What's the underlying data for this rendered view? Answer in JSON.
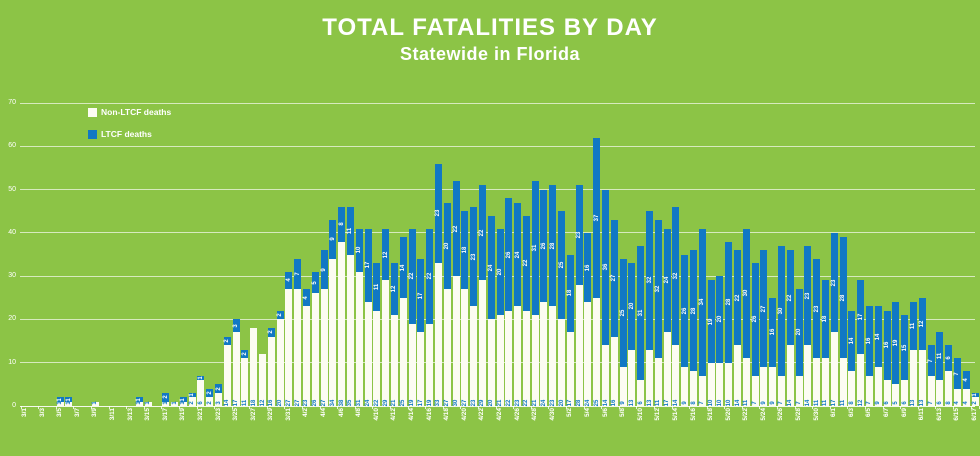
{
  "title": "TOTAL FATALITIES BY DAY",
  "subtitle": "Statewide in Florida",
  "colors": {
    "background": "#8CC446",
    "non_ltcf": "#FCFCF2",
    "ltcf": "#1178C4",
    "text": "#FFFFFF"
  },
  "legend": [
    {
      "label": "Non-LTCF deaths",
      "color": "#FCFCF2"
    },
    {
      "label": "LTCF deaths",
      "color": "#1178C4"
    }
  ],
  "chart_data": {
    "type": "bar",
    "stacked": true,
    "title": "TOTAL FATALITIES BY DAY",
    "subtitle": "Statewide in Florida",
    "xlabel": "",
    "ylabel": "",
    "ylim": [
      0,
      70
    ],
    "yticks": [
      0,
      10,
      20,
      30,
      40,
      50,
      60,
      70
    ],
    "grid": true,
    "legend_position": "top-left-inside",
    "xtick_every": 2,
    "x": [
      "3/1",
      "3/2",
      "3/3",
      "3/4",
      "3/5",
      "3/6",
      "3/7",
      "3/8",
      "3/9",
      "3/10",
      "3/11",
      "3/12",
      "3/13",
      "3/14",
      "3/15",
      "3/16",
      "3/17",
      "3/18",
      "3/19",
      "3/20",
      "3/21",
      "3/22",
      "3/23",
      "3/24",
      "3/25",
      "3/26",
      "3/27",
      "3/28",
      "3/29",
      "3/30",
      "3/31",
      "4/1",
      "4/2",
      "4/3",
      "4/4",
      "4/5",
      "4/6",
      "4/7",
      "4/8",
      "4/9",
      "4/10",
      "4/11",
      "4/12",
      "4/13",
      "4/14",
      "4/15",
      "4/16",
      "4/17",
      "4/18",
      "4/19",
      "4/20",
      "4/21",
      "4/22",
      "4/23",
      "4/24",
      "4/25",
      "4/26",
      "4/27",
      "4/28",
      "4/29",
      "4/30",
      "5/1",
      "5/2",
      "5/3",
      "5/4",
      "5/5",
      "5/6",
      "5/7",
      "5/8",
      "5/9",
      "5/10",
      "5/11",
      "5/12",
      "5/13",
      "5/14",
      "5/15",
      "5/16",
      "5/17",
      "5/18",
      "5/19",
      "5/20",
      "5/21",
      "5/22",
      "5/23",
      "5/24",
      "5/25",
      "5/26",
      "5/27",
      "5/28",
      "5/29",
      "5/30",
      "5/31",
      "6/1",
      "6/2",
      "6/3",
      "6/4",
      "6/5",
      "6/6",
      "6/7",
      "6/8",
      "6/9",
      "6/10",
      "6/11",
      "6/12",
      "6/13",
      "6/14",
      "6/15",
      "6/16",
      "6/17"
    ],
    "series": [
      {
        "name": "Non-LTCF deaths",
        "values": [
          0,
          0,
          0,
          0,
          1,
          1,
          0,
          0,
          1,
          0,
          0,
          0,
          0,
          1,
          1,
          0,
          1,
          1,
          1,
          2,
          6,
          2,
          3,
          14,
          17,
          11,
          18,
          12,
          16,
          20,
          27,
          27,
          23,
          26,
          27,
          34,
          38,
          35,
          31,
          24,
          22,
          29,
          21,
          25,
          19,
          17,
          19,
          33,
          27,
          30,
          27,
          23,
          29,
          20,
          21,
          22,
          23,
          22,
          21,
          24,
          23,
          20,
          17,
          28,
          24,
          25,
          14,
          16,
          9,
          13,
          6,
          13,
          11,
          17,
          14,
          9,
          8,
          7,
          10,
          10,
          10,
          14,
          11,
          7,
          9,
          9,
          7,
          14,
          7,
          14,
          11,
          11,
          17,
          11,
          8,
          12,
          7,
          9,
          6,
          5,
          6,
          13,
          13,
          7,
          6,
          8,
          4,
          4,
          2
        ]
      },
      {
        "name": "LTCF deaths",
        "values": [
          0,
          0,
          0,
          0,
          1,
          1,
          0,
          0,
          0,
          0,
          0,
          0,
          0,
          1,
          0,
          0,
          2,
          0,
          1,
          1,
          1,
          2,
          2,
          2,
          3,
          2,
          0,
          0,
          2,
          2,
          4,
          7,
          4,
          5,
          9,
          9,
          8,
          11,
          10,
          17,
          11,
          12,
          12,
          14,
          22,
          17,
          22,
          23,
          20,
          22,
          18,
          23,
          22,
          24,
          20,
          26,
          24,
          22,
          31,
          26,
          28,
          25,
          18,
          23,
          16,
          37,
          36,
          27,
          25,
          20,
          31,
          32,
          32,
          24,
          32,
          26,
          28,
          34,
          19,
          20,
          28,
          22,
          30,
          26,
          27,
          16,
          30,
          22,
          20,
          23,
          23,
          18,
          23,
          28,
          14,
          17,
          16,
          14,
          16,
          19,
          15,
          11,
          12,
          7,
          11,
          6,
          7,
          4,
          1
        ]
      }
    ]
  }
}
